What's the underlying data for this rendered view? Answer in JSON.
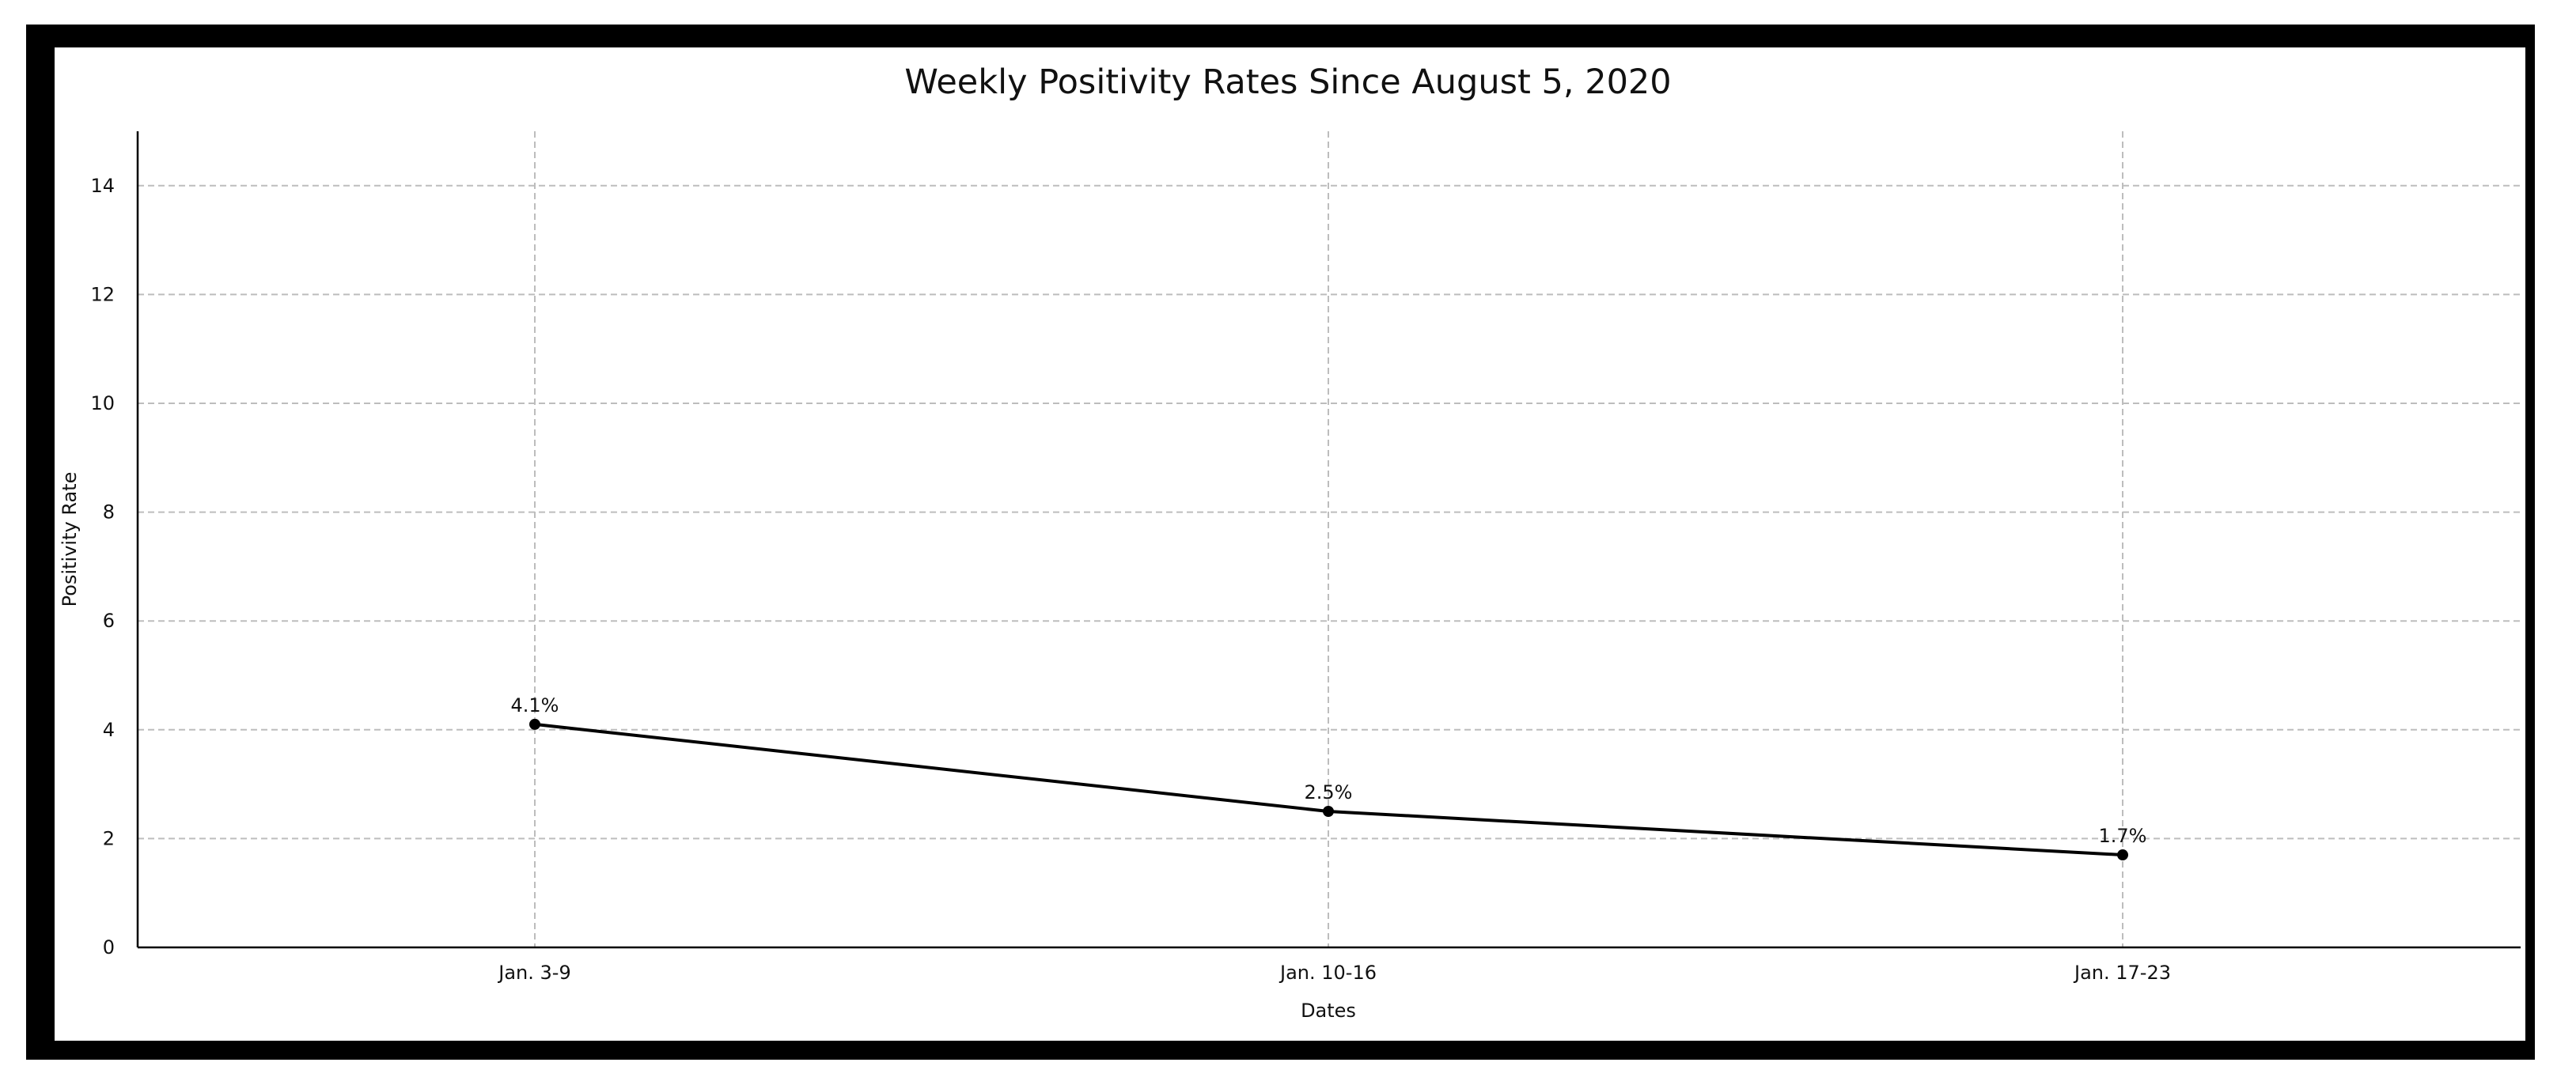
{
  "chart_data": {
    "type": "line",
    "title": "Weekly Positivity Rates Since August 5, 2020",
    "xlabel": "Dates",
    "ylabel": "Positivity Rate",
    "categories": [
      "Jan. 3-9",
      "Jan. 10-16",
      "Jan. 17-23"
    ],
    "series": [
      {
        "values": [
          4.1,
          2.5,
          1.7
        ],
        "labels": [
          "4.1%",
          "2.5%",
          "1.7%"
        ],
        "color": "#000000"
      }
    ],
    "ylim": [
      0,
      15
    ],
    "yticks": [
      0,
      2,
      4,
      6,
      8,
      10,
      12,
      14
    ],
    "grid": true
  }
}
